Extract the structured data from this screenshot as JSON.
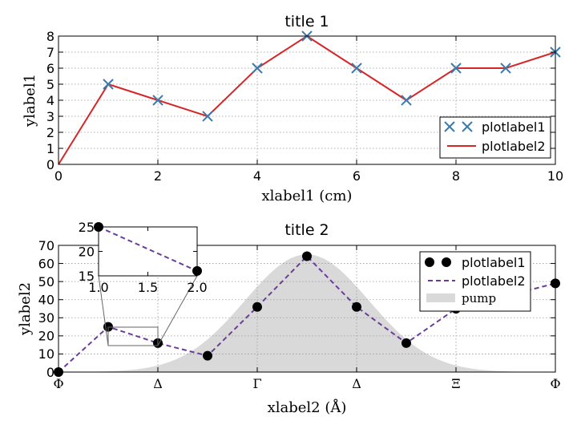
{
  "chart_data": [
    {
      "type": "line",
      "title": "title 1",
      "xlabel": "xlabel1 (cm)",
      "ylabel": "ylabel1",
      "xlim": [
        0,
        10
      ],
      "ylim": [
        0,
        8
      ],
      "xticks": [
        0,
        2,
        4,
        6,
        8,
        10
      ],
      "xtick_labels": [
        "0",
        "2",
        "4",
        "6",
        "8",
        "10"
      ],
      "yticks": [
        0,
        1,
        2,
        3,
        4,
        5,
        6,
        7,
        8
      ],
      "ytick_labels": [
        "0",
        "1",
        "2",
        "3",
        "4",
        "5",
        "6",
        "7",
        "8"
      ],
      "grid": true,
      "legend_position": "lower-right",
      "series": [
        {
          "name": "plotlabel1",
          "style": "x markers",
          "color": "#3a7bb0",
          "x": [
            1,
            2,
            3,
            4,
            5,
            6,
            7,
            8,
            9,
            10
          ],
          "y": [
            5,
            4,
            3,
            6,
            8,
            6,
            4,
            6,
            6,
            7
          ]
        },
        {
          "name": "plotlabel2",
          "style": "solid line",
          "color": "#d62728",
          "x": [
            0,
            1,
            2,
            3,
            4,
            5,
            6,
            7,
            8,
            9,
            10
          ],
          "y": [
            0,
            5,
            4,
            3,
            6,
            8,
            6,
            4,
            6,
            6,
            7
          ]
        }
      ]
    },
    {
      "type": "line",
      "title": "title 2",
      "xlabel": "xlabel2  (Å)",
      "ylabel": "ylabel2",
      "xlim": [
        0,
        10
      ],
      "ylim": [
        0,
        70
      ],
      "xticks": [
        0,
        2,
        4,
        6,
        8,
        10
      ],
      "xtick_labels": [
        "Φ",
        "Δ",
        "Γ",
        "Δ",
        "Ξ",
        "Φ"
      ],
      "yticks": [
        0,
        10,
        20,
        30,
        40,
        50,
        60,
        70
      ],
      "ytick_labels": [
        "0",
        "10",
        "20",
        "30",
        "40",
        "50",
        "60",
        "70"
      ],
      "grid": true,
      "legend_position": "top-right",
      "series": [
        {
          "name": "plotlabel1",
          "style": "filled circle markers",
          "color": "#000000",
          "x": [
            0,
            1,
            2,
            3,
            4,
            5,
            6,
            7,
            8,
            9,
            10
          ],
          "y": [
            0,
            25,
            16,
            9,
            36,
            64,
            36,
            16,
            35,
            42,
            49
          ]
        },
        {
          "name": "plotlabel2",
          "style": "dashed line",
          "color": "#6a3d9a",
          "x": [
            0,
            1,
            2,
            3,
            4,
            5,
            6,
            7,
            8,
            9,
            10
          ],
          "y": [
            0,
            25,
            16,
            9,
            36,
            64,
            36,
            16,
            35,
            42,
            49
          ]
        },
        {
          "name": "pump",
          "style": "filled area",
          "color": "#d9d9d9",
          "shape": "gaussian",
          "center": 5,
          "peak": 65,
          "sigma": 1.25
        }
      ],
      "inset": {
        "xlim": [
          1,
          2
        ],
        "ylim": [
          15,
          25
        ],
        "xticks": [
          1.0,
          1.5,
          2.0
        ],
        "xtick_labels": [
          "1.0",
          "1.5",
          "2.0"
        ],
        "yticks": [
          15,
          20,
          25
        ],
        "ytick_labels": [
          "15",
          "20",
          "25"
        ]
      }
    }
  ]
}
